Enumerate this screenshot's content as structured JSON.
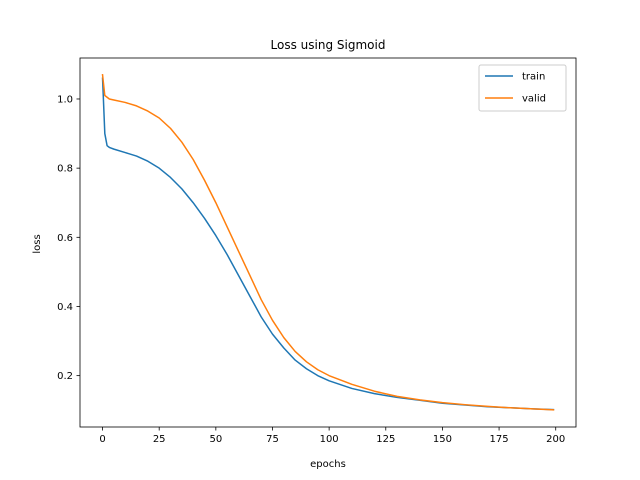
{
  "chart_data": {
    "type": "line",
    "title": "Loss using Sigmoid",
    "xlabel": "epochs",
    "ylabel": "loss",
    "xlim": [
      -9.95,
      208.95
    ],
    "ylim": [
      0.0515,
      1.1185
    ],
    "xticks": [
      0,
      25,
      50,
      75,
      100,
      125,
      150,
      175,
      200
    ],
    "xtick_labels": [
      "0",
      "25",
      "50",
      "75",
      "100",
      "125",
      "150",
      "175",
      "200"
    ],
    "yticks": [
      0.2,
      0.4,
      0.6,
      0.8,
      1.0
    ],
    "ytick_labels": [
      "0.2",
      "0.4",
      "0.6",
      "0.8",
      "1.0"
    ],
    "grid": false,
    "legend": {
      "position": "top-right"
    },
    "series": [
      {
        "name": "train",
        "color": "#1f77b4",
        "x": [
          0,
          1,
          2,
          3,
          5,
          10,
          15,
          20,
          25,
          30,
          35,
          40,
          45,
          50,
          55,
          60,
          65,
          70,
          75,
          80,
          85,
          90,
          95,
          100,
          110,
          120,
          130,
          140,
          150,
          160,
          170,
          180,
          190,
          199
        ],
        "y": [
          1.06,
          0.9,
          0.865,
          0.86,
          0.855,
          0.845,
          0.835,
          0.82,
          0.8,
          0.773,
          0.74,
          0.7,
          0.655,
          0.605,
          0.55,
          0.49,
          0.43,
          0.37,
          0.32,
          0.28,
          0.245,
          0.22,
          0.2,
          0.185,
          0.163,
          0.148,
          0.137,
          0.129,
          0.12,
          0.115,
          0.11,
          0.107,
          0.104,
          0.102
        ]
      },
      {
        "name": "valid",
        "color": "#ff7f0e",
        "x": [
          0,
          1,
          2,
          3,
          5,
          10,
          15,
          20,
          25,
          30,
          35,
          40,
          45,
          50,
          55,
          60,
          65,
          70,
          75,
          80,
          85,
          90,
          95,
          100,
          110,
          120,
          130,
          140,
          150,
          160,
          170,
          180,
          190,
          199
        ],
        "y": [
          1.07,
          1.01,
          1.005,
          1.0,
          0.997,
          0.99,
          0.98,
          0.965,
          0.945,
          0.915,
          0.875,
          0.825,
          0.765,
          0.7,
          0.63,
          0.56,
          0.49,
          0.42,
          0.36,
          0.31,
          0.27,
          0.24,
          0.217,
          0.2,
          0.175,
          0.155,
          0.14,
          0.13,
          0.122,
          0.116,
          0.111,
          0.107,
          0.104,
          0.101
        ]
      }
    ]
  }
}
